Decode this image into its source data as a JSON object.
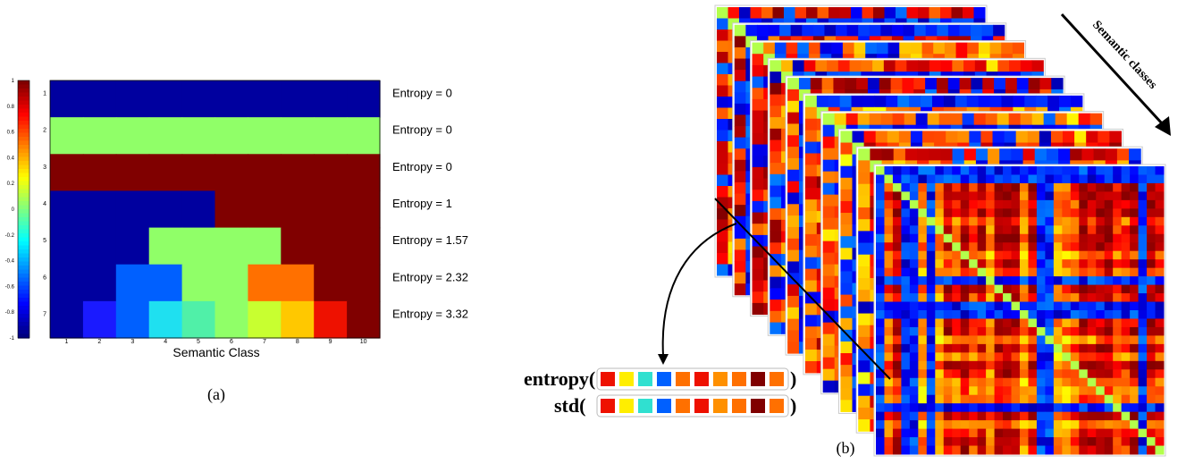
{
  "panel_a": {
    "caption": "(a)",
    "xlabel": "Semantic Class",
    "x_ticks": [
      "1",
      "2",
      "3",
      "4",
      "5",
      "6",
      "7",
      "8",
      "9",
      "10"
    ],
    "y_ticks": [
      "1",
      "2",
      "3",
      "4",
      "5",
      "6",
      "7"
    ],
    "colorbar_ticks": [
      "1",
      "0.8",
      "0.6",
      "0.4",
      "0.2",
      "0",
      "-0.2",
      "-0.4",
      "-0.6",
      "-0.8",
      "-1"
    ],
    "entropy_labels": [
      "Entropy = 0",
      "Entropy = 0",
      "Entropy = 0",
      "Entropy = 1",
      "Entropy = 1.57",
      "Entropy = 2.32",
      "Entropy = 3.32"
    ],
    "rows": [
      [
        1,
        1,
        1,
        1,
        1,
        1,
        1,
        1,
        1,
        1
      ],
      [
        6,
        6,
        6,
        6,
        6,
        6,
        6,
        6,
        6,
        6
      ],
      [
        11,
        11,
        11,
        11,
        11,
        11,
        11,
        11,
        11,
        11
      ],
      [
        1,
        1,
        1,
        1,
        1,
        11,
        11,
        11,
        11,
        11
      ],
      [
        1,
        1,
        1,
        6,
        6,
        6,
        6,
        11,
        11,
        11
      ],
      [
        1,
        1,
        3,
        3,
        6,
        6,
        9,
        9,
        11,
        11
      ],
      [
        1,
        2,
        3,
        4,
        5,
        6,
        7,
        8,
        10,
        11
      ]
    ],
    "palette": [
      "#00008f",
      "#00009f",
      "#1a1aff",
      "#0060ff",
      "#1fe0f0",
      "#50f0a8",
      "#90ff68",
      "#c8ff30",
      "#ffc800",
      "#ff7000",
      "#ee1100",
      "#800000"
    ]
  },
  "panel_b": {
    "caption": "(b)",
    "arrow_label": "Semantic classes",
    "entropy_label": "entropy(",
    "std_label": "std(",
    "close_paren": ")",
    "vector_colors": [
      "#ee1100",
      "#ffee00",
      "#30e0d0",
      "#0060ff",
      "#ff7000",
      "#ee1100",
      "#ff9000",
      "#ff7000",
      "#800000",
      "#ff7000"
    ]
  }
}
